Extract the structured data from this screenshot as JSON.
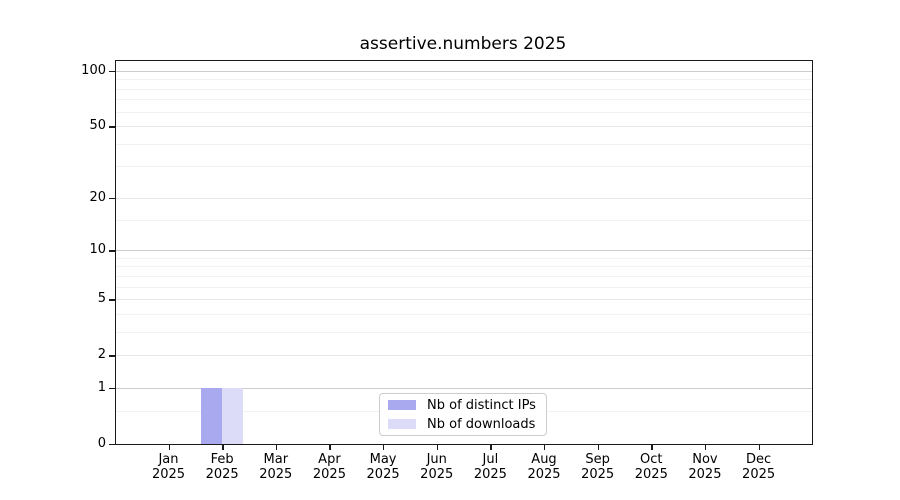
{
  "title": "assertive.numbers 2025",
  "colors": {
    "background": "#ffffff",
    "bar_distinct_ips": "#a9a9f0",
    "bar_downloads": "#dcdcf8",
    "grid_decade": "#cccccc",
    "grid_major": "#e6e6e6",
    "grid_minor": "#f2f2f2",
    "spine": "#1a1a1a",
    "legend_border": "#cccccc",
    "text": "#000000"
  },
  "chart_data": {
    "type": "bar",
    "title": "assertive.numbers 2025",
    "x": [
      "Jan",
      "Feb",
      "Mar",
      "Apr",
      "May",
      "Jun",
      "Jul",
      "Aug",
      "Sep",
      "Oct",
      "Nov",
      "Dec"
    ],
    "x_year": "2025",
    "series": [
      {
        "name": "Nb of distinct IPs",
        "color": "#a9a9f0",
        "values": [
          0,
          1,
          0,
          0,
          0,
          0,
          0,
          0,
          0,
          0,
          0,
          0
        ]
      },
      {
        "name": "Nb of downloads",
        "color": "#dcdcf8",
        "values": [
          0,
          1,
          0,
          0,
          0,
          0,
          0,
          0,
          0,
          0,
          0,
          0
        ]
      }
    ],
    "xlabel": "",
    "ylabel": "",
    "y_scale": "log1p",
    "y_major_ticks": [
      0,
      1,
      2,
      5,
      10,
      20,
      50,
      100
    ],
    "y_minor_ticks": [
      0.5,
      3,
      4,
      6,
      7,
      8,
      9,
      15,
      30,
      40,
      60,
      70,
      80,
      90
    ],
    "ylim": [
      0,
      113
    ],
    "grid": "horizontal",
    "legend_position": "inside-bottom-center"
  }
}
